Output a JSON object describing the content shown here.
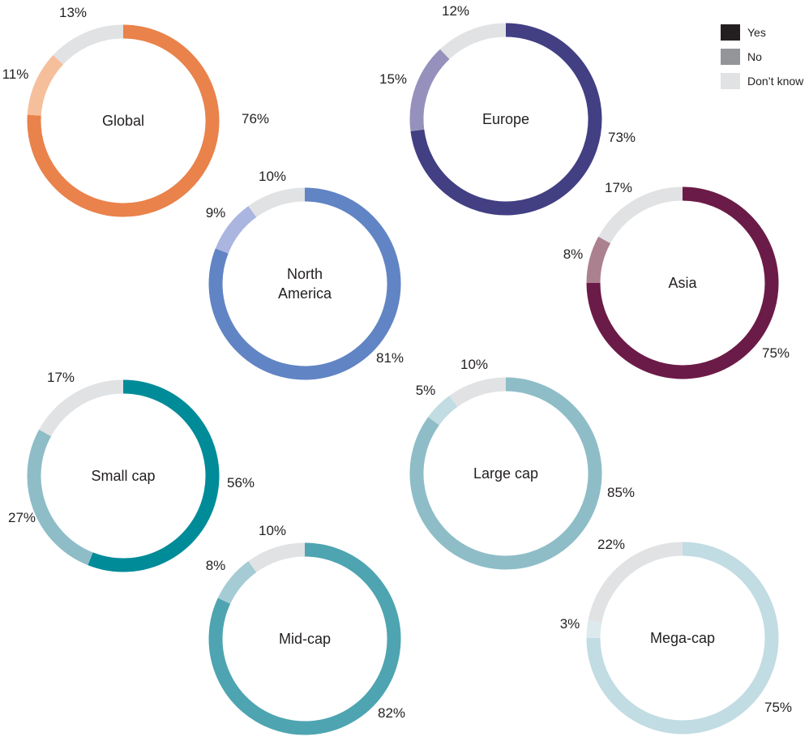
{
  "legend": {
    "items": [
      {
        "label": "Yes",
        "color": "#231f20"
      },
      {
        "label": "No",
        "color": "#939598"
      },
      {
        "label": "Don’t know",
        "color": "#e1e2e4"
      }
    ]
  },
  "chart_data": [
    {
      "type": "pie",
      "center_label": [
        "Global"
      ],
      "categories": [
        "Yes",
        "No",
        "Don’t know"
      ],
      "values": [
        76,
        11,
        13
      ],
      "labels": [
        "76%",
        "11%",
        "13%"
      ],
      "colors": [
        "#e9824b",
        "#f6bf9c",
        "#e1e2e4"
      ]
    },
    {
      "type": "pie",
      "center_label": [
        "Europe"
      ],
      "categories": [
        "Yes",
        "No",
        "Don’t know"
      ],
      "values": [
        73,
        15,
        12
      ],
      "labels": [
        "73%",
        "15%",
        "12%"
      ],
      "colors": [
        "#423f83",
        "#9591bc",
        "#e1e2e4"
      ]
    },
    {
      "type": "pie",
      "center_label": [
        "North",
        "America"
      ],
      "categories": [
        "Yes",
        "No",
        "Don’t know"
      ],
      "values": [
        81,
        9,
        10
      ],
      "labels": [
        "81%",
        "9%",
        "10%"
      ],
      "colors": [
        "#6184c4",
        "#aab6e0",
        "#e1e2e4"
      ]
    },
    {
      "type": "pie",
      "center_label": [
        "Asia"
      ],
      "categories": [
        "Yes",
        "No",
        "Don’t know"
      ],
      "values": [
        75,
        8,
        17
      ],
      "labels": [
        "75%",
        "8%",
        "17%"
      ],
      "colors": [
        "#6b1b47",
        "#ab808f",
        "#e1e2e4"
      ]
    },
    {
      "type": "pie",
      "center_label": [
        "Small cap"
      ],
      "categories": [
        "Yes",
        "No",
        "Don’t know"
      ],
      "values": [
        56,
        27,
        17
      ],
      "labels": [
        "56%",
        "27%",
        "17%"
      ],
      "colors": [
        "#008b99",
        "#8ebdc7",
        "#e1e2e4"
      ]
    },
    {
      "type": "pie",
      "center_label": [
        "Large cap"
      ],
      "categories": [
        "Yes",
        "No",
        "Don’t know"
      ],
      "values": [
        85,
        5,
        10
      ],
      "labels": [
        "85%",
        "5%",
        "10%"
      ],
      "colors": [
        "#8ebdc7",
        "#c1dce2",
        "#e1e2e4"
      ]
    },
    {
      "type": "pie",
      "center_label": [
        "Mid-cap"
      ],
      "categories": [
        "Yes",
        "No",
        "Don’t know"
      ],
      "values": [
        82,
        8,
        10
      ],
      "labels": [
        "82%",
        "8%",
        "10%"
      ],
      "colors": [
        "#4ea4b1",
        "#a5ccd5",
        "#e1e2e4"
      ]
    },
    {
      "type": "pie",
      "center_label": [
        "Mega-cap"
      ],
      "categories": [
        "Yes",
        "No",
        "Don’t know"
      ],
      "values": [
        75,
        3,
        22
      ],
      "labels": [
        "75%",
        "3%",
        "22%"
      ],
      "colors": [
        "#c1dce2",
        "#dceaed",
        "#e1e2e4"
      ]
    }
  ]
}
